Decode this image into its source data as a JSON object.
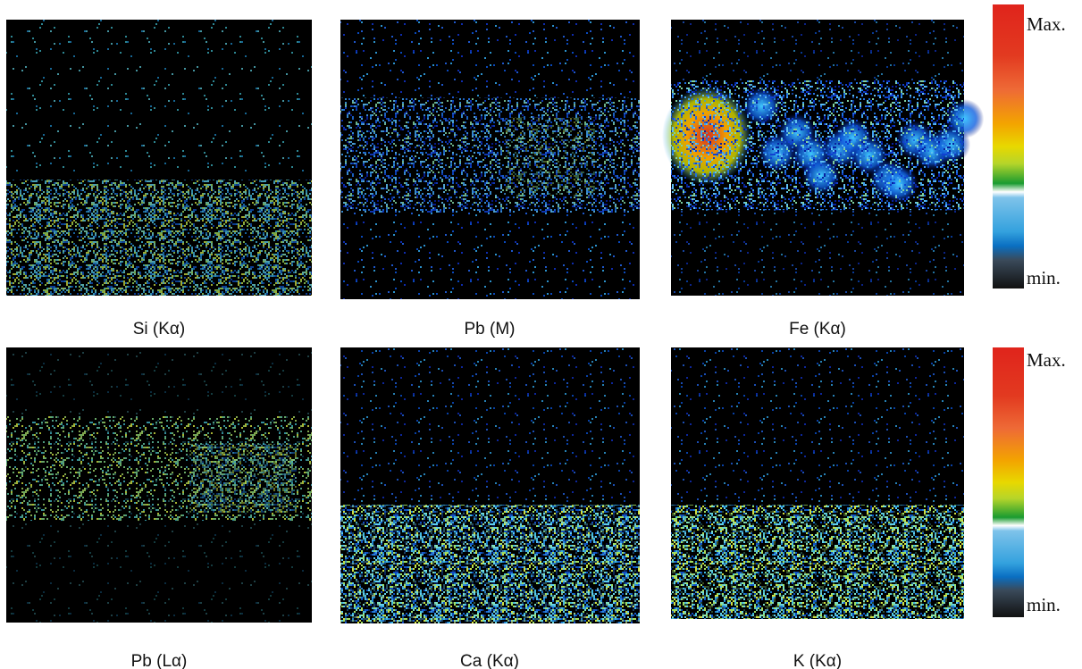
{
  "panels": [
    {
      "label": "Si (Kα)"
    },
    {
      "label": "Pb (M)"
    },
    {
      "label": "Fe (Kα)"
    },
    {
      "label": "Pb (Lα)"
    },
    {
      "label": "Ca (Kα)"
    },
    {
      "label": "K (Kα)"
    }
  ],
  "colorbars": [
    {
      "max": "Max.",
      "min": "min."
    },
    {
      "max": "Max.",
      "min": "min."
    }
  ]
}
